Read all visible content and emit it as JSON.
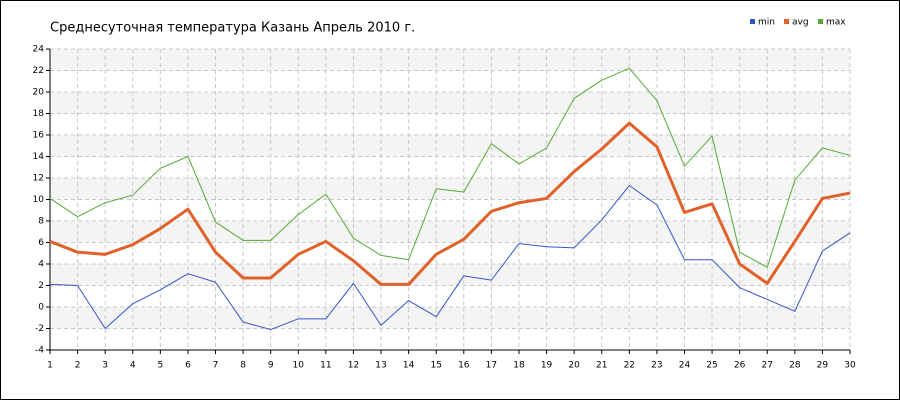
{
  "chart_data": {
    "type": "line",
    "title": "Среднесуточная температура Казань  Апрель 2010 г.",
    "x": [
      1,
      2,
      3,
      4,
      5,
      6,
      7,
      8,
      9,
      10,
      11,
      12,
      13,
      14,
      15,
      16,
      17,
      18,
      19,
      20,
      21,
      22,
      23,
      24,
      25,
      26,
      27,
      28,
      29,
      30
    ],
    "xlim": [
      1,
      30
    ],
    "xticks": [
      1,
      2,
      3,
      4,
      5,
      6,
      7,
      8,
      9,
      10,
      11,
      12,
      13,
      14,
      15,
      16,
      17,
      18,
      19,
      20,
      21,
      22,
      23,
      24,
      25,
      26,
      27,
      28,
      29,
      30
    ],
    "ylim": [
      -4,
      24
    ],
    "yticks": [
      -4,
      -2,
      0,
      2,
      4,
      6,
      8,
      10,
      12,
      14,
      16,
      18,
      20,
      22,
      24
    ],
    "grid": true,
    "legend": "top-right",
    "series": [
      {
        "name": "min",
        "color": "#3355cc",
        "values": [
          2.1,
          2.0,
          -2.0,
          0.3,
          1.6,
          3.1,
          2.3,
          -1.4,
          -2.1,
          -1.1,
          -1.1,
          2.2,
          -1.7,
          0.6,
          -0.9,
          2.9,
          2.5,
          5.9,
          5.6,
          5.5,
          8.1,
          11.3,
          9.5,
          4.4,
          4.4,
          1.8,
          0.7,
          -0.4,
          5.2,
          6.9
        ]
      },
      {
        "name": "avg",
        "color": "#e0622a",
        "values": [
          6.1,
          5.1,
          4.9,
          5.8,
          7.3,
          9.1,
          5.1,
          2.7,
          2.7,
          4.9,
          6.1,
          4.3,
          2.1,
          2.1,
          4.9,
          6.3,
          8.9,
          9.7,
          10.1,
          12.6,
          14.7,
          17.1,
          14.9,
          8.8,
          9.6,
          4.0,
          2.2,
          6.1,
          10.1,
          10.6
        ]
      },
      {
        "name": "max",
        "color": "#55aa33",
        "values": [
          10.1,
          8.4,
          9.7,
          10.4,
          12.9,
          14.0,
          7.9,
          6.2,
          6.2,
          8.6,
          10.5,
          6.4,
          4.8,
          4.4,
          11.0,
          10.7,
          15.2,
          13.3,
          14.8,
          19.4,
          21.1,
          22.2,
          19.2,
          13.1,
          15.9,
          5.1,
          3.7,
          11.8,
          14.8,
          14.1
        ]
      }
    ]
  }
}
